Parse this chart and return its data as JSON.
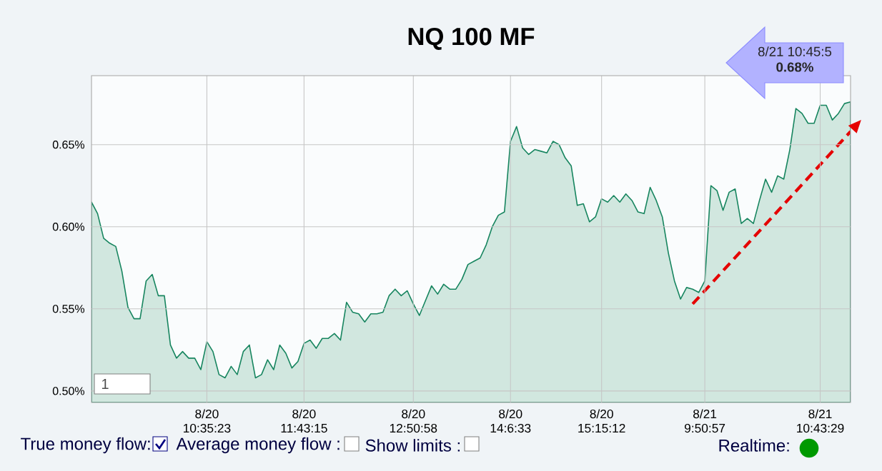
{
  "chart_data": {
    "type": "area",
    "title": "NQ 100 MF",
    "marker": "none",
    "grid": true,
    "ylim": [
      0.493,
      0.692
    ],
    "yticks": [
      {
        "value": 0.5,
        "label": "0.50%"
      },
      {
        "value": 0.55,
        "label": "0.55%"
      },
      {
        "value": 0.6,
        "label": "0.60%"
      },
      {
        "value": 0.65,
        "label": "0.65%"
      }
    ],
    "categories": [
      null,
      null,
      null,
      null,
      null,
      null,
      null,
      null,
      null,
      null,
      null,
      null,
      null,
      null,
      null,
      null,
      null,
      null,
      null,
      "8/20 10:35:23",
      null,
      null,
      null,
      null,
      null,
      null,
      null,
      null,
      null,
      null,
      null,
      null,
      null,
      null,
      null,
      "8/20 11:43:15",
      null,
      null,
      null,
      null,
      null,
      null,
      null,
      null,
      null,
      null,
      null,
      null,
      null,
      null,
      null,
      null,
      null,
      "8/20 12:50:58",
      null,
      null,
      null,
      null,
      null,
      null,
      null,
      null,
      null,
      null,
      null,
      null,
      null,
      null,
      null,
      "8/20 14:6:33",
      null,
      null,
      null,
      null,
      null,
      null,
      null,
      null,
      null,
      null,
      null,
      null,
      null,
      null,
      "8/20 15:15:12",
      null,
      null,
      null,
      null,
      null,
      null,
      null,
      null,
      null,
      null,
      null,
      null,
      null,
      null,
      null,
      null,
      "8/21 9:50:57",
      null,
      null,
      null,
      null,
      null,
      null,
      null,
      null,
      null,
      null,
      null,
      null,
      null,
      null,
      null,
      null,
      null,
      null,
      "8/21 10:43:29",
      null,
      null,
      null,
      null,
      null
    ],
    "series": [
      {
        "color": "#17855f",
        "values": [
          0.615,
          0.608,
          0.593,
          0.59,
          0.588,
          0.573,
          0.551,
          0.544,
          0.544,
          0.567,
          0.571,
          0.558,
          0.558,
          0.528,
          0.52,
          0.524,
          0.52,
          0.52,
          0.513,
          0.53,
          0.524,
          0.51,
          0.508,
          0.515,
          0.51,
          0.524,
          0.528,
          0.508,
          0.51,
          0.519,
          0.513,
          0.528,
          0.523,
          0.514,
          0.518,
          0.529,
          0.531,
          0.526,
          0.532,
          0.532,
          0.535,
          0.531,
          0.554,
          0.548,
          0.547,
          0.542,
          0.547,
          0.547,
          0.548,
          0.558,
          0.562,
          0.558,
          0.561,
          0.553,
          0.546,
          0.555,
          0.564,
          0.559,
          0.565,
          0.562,
          0.562,
          0.568,
          0.577,
          0.579,
          0.581,
          0.589,
          0.6,
          0.607,
          0.609,
          0.652,
          0.661,
          0.648,
          0.644,
          0.647,
          0.646,
          0.645,
          0.652,
          0.65,
          0.642,
          0.637,
          0.613,
          0.614,
          0.603,
          0.606,
          0.617,
          0.615,
          0.619,
          0.615,
          0.62,
          0.616,
          0.609,
          0.608,
          0.624,
          0.616,
          0.606,
          0.584,
          0.567,
          0.556,
          0.563,
          0.562,
          0.56,
          0.567,
          0.625,
          0.622,
          0.61,
          0.621,
          0.623,
          0.602,
          0.605,
          0.602,
          0.616,
          0.629,
          0.621,
          0.631,
          0.629,
          0.647,
          0.672,
          0.669,
          0.663,
          0.663,
          0.674,
          0.674,
          0.665,
          0.669,
          0.675,
          0.676
        ]
      },
      {
        "type": "line",
        "color": "#e50000",
        "line_style": "dashed",
        "values": [
          null,
          null,
          null,
          null,
          null,
          null,
          null,
          null,
          null,
          null,
          null,
          null,
          null,
          null,
          null,
          null,
          null,
          null,
          null,
          null,
          null,
          null,
          null,
          null,
          null,
          null,
          null,
          null,
          null,
          null,
          null,
          null,
          null,
          null,
          null,
          null,
          null,
          null,
          null,
          null,
          null,
          null,
          null,
          null,
          null,
          null,
          null,
          null,
          null,
          null,
          null,
          null,
          null,
          null,
          null,
          null,
          null,
          null,
          null,
          null,
          null,
          null,
          null,
          null,
          null,
          null,
          null,
          null,
          null,
          null,
          null,
          null,
          null,
          null,
          null,
          null,
          null,
          null,
          null,
          null,
          null,
          null,
          null,
          null,
          null,
          null,
          null,
          null,
          null,
          null,
          null,
          null,
          null,
          null,
          null,
          null,
          null,
          null,
          null,
          0.553,
          null,
          null,
          null,
          null,
          null,
          null,
          null,
          null,
          null,
          null,
          null,
          null,
          null,
          null,
          null,
          null,
          null,
          null,
          null,
          null,
          null,
          null,
          null,
          null,
          null,
          0.658
        ]
      }
    ],
    "annotations": [
      "8/21 10:45:5",
      "0.68%",
      "1",
      "True money flow:",
      "Average money flow :",
      "Show limits :",
      "Realtime:"
    ]
  }
}
